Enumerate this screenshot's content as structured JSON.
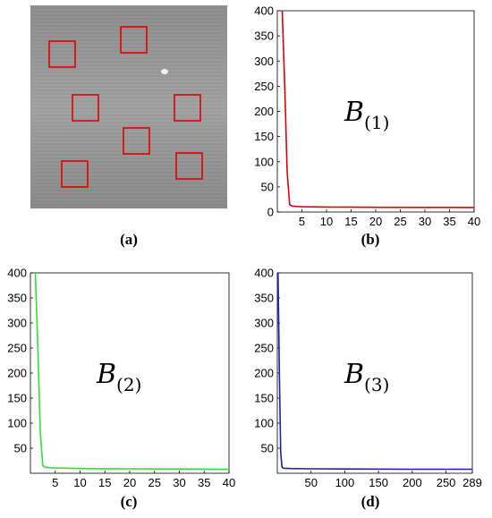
{
  "panel_labels": {
    "a": "(a)",
    "b": "(b)",
    "c": "(c)",
    "d": "(d)"
  },
  "image_a": {
    "description_colors": {
      "background": "#9a9a9a",
      "box_stroke": "#e00000"
    },
    "box_count": 7
  },
  "chart_data": [
    {
      "id": "b",
      "type": "line",
      "annotation": {
        "main": "B",
        "subscript": "(1)"
      },
      "color": "#e00000",
      "xlim": [
        0,
        40
      ],
      "ylim": [
        0,
        400
      ],
      "xticks": [
        5,
        10,
        15,
        20,
        25,
        30,
        35,
        40
      ],
      "yticks": [
        0,
        50,
        100,
        150,
        200,
        250,
        300,
        350,
        400
      ],
      "x": [
        1,
        1.5,
        2,
        2.5,
        3,
        4,
        5,
        10,
        20,
        30,
        40
      ],
      "y": [
        400,
        250,
        80,
        15,
        12,
        11,
        10.5,
        10,
        9.5,
        9.2,
        9
      ]
    },
    {
      "id": "c",
      "type": "line",
      "annotation": {
        "main": "B",
        "subscript": "(2)"
      },
      "color": "#33dd33",
      "xlim": [
        0,
        40
      ],
      "ylim": [
        0,
        400
      ],
      "xticks": [
        5,
        10,
        15,
        20,
        25,
        30,
        35,
        40
      ],
      "yticks": [
        50,
        100,
        150,
        200,
        250,
        300,
        350,
        400
      ],
      "x": [
        1,
        1.5,
        2,
        2.5,
        3,
        4,
        5,
        10,
        20,
        30,
        40
      ],
      "y": [
        400,
        250,
        80,
        15,
        12,
        11,
        10.5,
        9.5,
        9,
        8.5,
        8
      ]
    },
    {
      "id": "d",
      "type": "line",
      "annotation": {
        "main": "B",
        "subscript": "(3)"
      },
      "color": "#2020b0",
      "xlim": [
        0,
        289
      ],
      "ylim": [
        0,
        400
      ],
      "xticks": [
        50,
        100,
        150,
        200,
        250,
        289
      ],
      "yticks": [
        50,
        100,
        150,
        200,
        250,
        300,
        350,
        400
      ],
      "x": [
        1,
        3,
        5,
        7,
        10,
        20,
        50,
        100,
        200,
        289
      ],
      "y": [
        400,
        200,
        40,
        12,
        10,
        9.5,
        9,
        8.5,
        8,
        8
      ]
    }
  ]
}
